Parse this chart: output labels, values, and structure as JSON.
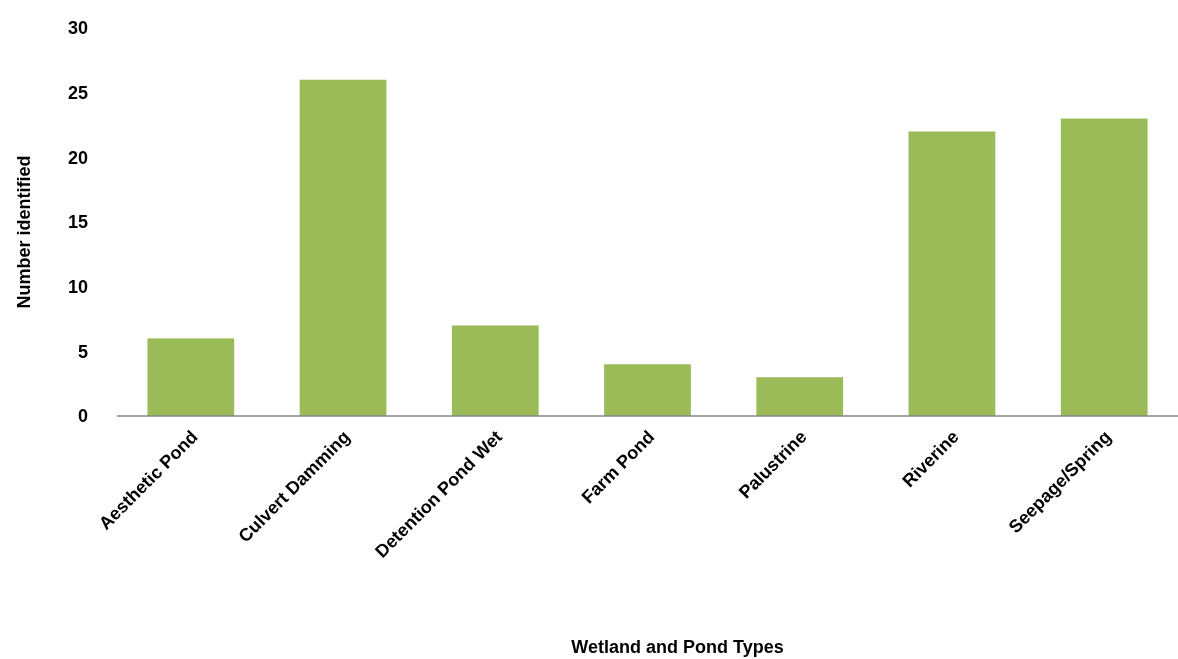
{
  "chart_data": {
    "type": "bar",
    "xlabel": "Wetland and Pond Types",
    "ylabel": "Number identified",
    "categories": [
      "Aesthetic Pond",
      "Culvert Damming",
      "Detention Pond Wet",
      "Farm Pond",
      "Palustrine",
      "Riverine",
      "Seepage/Spring"
    ],
    "values": [
      6,
      26,
      7,
      4,
      3,
      22,
      23
    ],
    "color": "#9bbb59",
    "ylim": [
      0,
      30
    ],
    "yticks": [
      0,
      5,
      10,
      15,
      20,
      25,
      30
    ],
    "grid": false
  }
}
